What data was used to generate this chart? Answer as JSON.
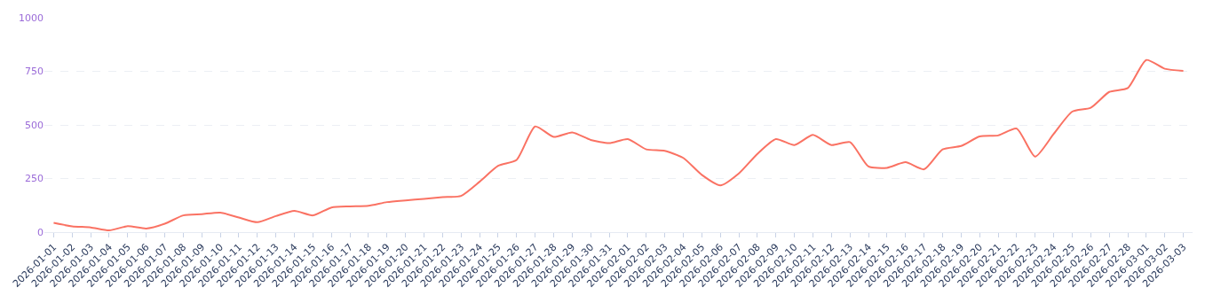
{
  "chart_data": {
    "type": "line",
    "categories": [
      "2026-01-01",
      "2026-01-02",
      "2026-01-03",
      "2026-01-04",
      "2026-01-05",
      "2026-01-06",
      "2026-01-07",
      "2026-01-08",
      "2026-01-09",
      "2026-01-10",
      "2026-01-11",
      "2026-01-12",
      "2026-01-13",
      "2026-01-14",
      "2026-01-15",
      "2026-01-16",
      "2026-01-17",
      "2026-01-18",
      "2026-01-19",
      "2026-01-20",
      "2026-01-21",
      "2026-01-22",
      "2026-01-23",
      "2026-01-24",
      "2026-01-25",
      "2026-01-26",
      "2026-01-27",
      "2026-01-28",
      "2026-01-29",
      "2026-01-30",
      "2026-01-31",
      "2026-02-01",
      "2026-02-02",
      "2026-02-03",
      "2026-02-04",
      "2026-02-05",
      "2026-02-06",
      "2026-02-07",
      "2026-02-08",
      "2026-02-09",
      "2026-02-10",
      "2026-02-11",
      "2026-02-12",
      "2026-02-13",
      "2026-02-14",
      "2026-02-15",
      "2026-02-16",
      "2026-02-17",
      "2026-02-18",
      "2026-02-19",
      "2026-02-20",
      "2026-02-21",
      "2026-02-22",
      "2026-02-23",
      "2026-02-24",
      "2026-02-25",
      "2026-02-26",
      "2026-02-27",
      "2026-02-28",
      "2026-03-01",
      "2026-03-02",
      "2026-03-03"
    ],
    "series": [
      {
        "color": "#fa7263",
        "values": [
          43,
          27,
          22,
          8,
          28,
          17,
          39,
          78,
          84,
          91,
          68,
          46,
          75,
          99,
          78,
          115,
          120,
          123,
          140,
          148,
          155,
          163,
          169,
          235,
          309,
          337,
          493,
          444,
          465,
          430,
          415,
          434,
          386,
          379,
          346,
          267,
          218,
          274,
          365,
          434,
          406,
          453,
          406,
          420,
          306,
          300,
          326,
          293,
          386,
          402,
          446,
          451,
          483,
          352,
          458,
          562,
          580,
          654,
          672,
          803,
          762,
          752
        ]
      }
    ],
    "ylim": [
      0,
      1000
    ],
    "yticks": [
      0,
      250,
      500,
      750,
      1000
    ],
    "grid": "y",
    "legend": false,
    "marker": "none",
    "line_style": "solid"
  }
}
